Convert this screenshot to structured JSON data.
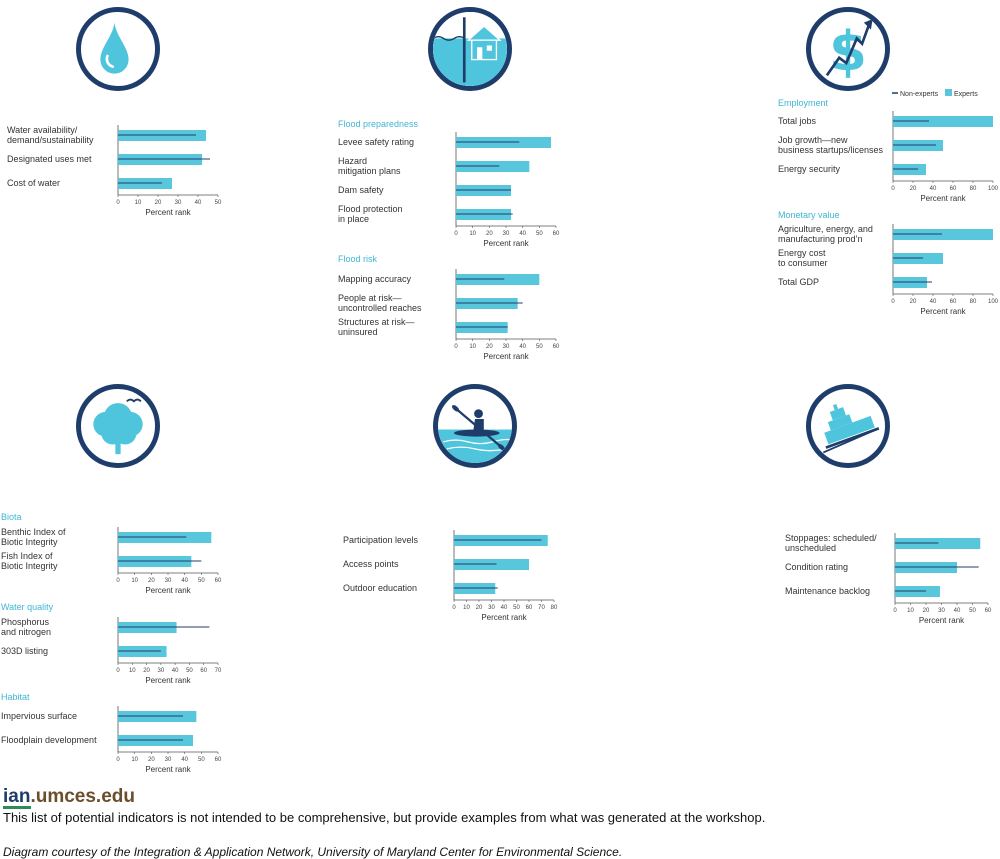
{
  "colors": {
    "experts": "#58c7dc",
    "non_experts": "#1f3d6b",
    "section": "#3fb6d3",
    "label": "#333333",
    "icon_ring": "#1f3d6b",
    "icon_fill": "#4ec5dc"
  },
  "icons": [
    {
      "name": "water-drop-icon"
    },
    {
      "name": "flooded-house-icon"
    },
    {
      "name": "dollar-growth-icon"
    },
    {
      "name": "tree-bird-icon"
    },
    {
      "name": "kayaker-icon"
    },
    {
      "name": "barge-icon"
    }
  ],
  "legend": {
    "non_experts": "Non-experts",
    "experts": "Experts"
  },
  "footer": {
    "logo_ian": "ian",
    "logo_rest": ".umces.edu",
    "note": "This list of potential indicators is not intended to be comprehensive, but provide examples from what was generated at the workshop.",
    "credit": "Diagram courtesy of the Integration & Application Network, University of Maryland Center for Environmental Science."
  },
  "chart_data": [
    {
      "id": "water",
      "type": "bar",
      "section": "",
      "xlabel": "Percent rank",
      "xlim": [
        0,
        50
      ],
      "ticks": [
        "0",
        "10",
        "20",
        "30",
        "40",
        "50"
      ],
      "categories": [
        "Water availability/\ndemand/sustainability",
        "Designated uses met",
        "Cost of water"
      ],
      "series": [
        {
          "name": "Experts",
          "values": [
            44,
            42,
            27
          ]
        },
        {
          "name": "Non-experts",
          "values": [
            39,
            46,
            22
          ]
        }
      ]
    },
    {
      "id": "flood-preparedness",
      "type": "bar",
      "section": "Flood preparedness",
      "xlabel": "Percent rank",
      "xlim": [
        0,
        60
      ],
      "ticks": [
        "0",
        "10",
        "20",
        "30",
        "40",
        "50",
        "60"
      ],
      "categories": [
        "Levee safety rating",
        "Hazard\nmitigation plans",
        "Dam safety",
        "Flood protection\nin place"
      ],
      "series": [
        {
          "name": "Experts",
          "values": [
            57,
            44,
            33,
            33
          ]
        },
        {
          "name": "Non-experts",
          "values": [
            38,
            26,
            33,
            34
          ]
        }
      ]
    },
    {
      "id": "flood-risk",
      "type": "bar",
      "section": "Flood risk",
      "xlabel": "Percent rank",
      "xlim": [
        0,
        60
      ],
      "ticks": [
        "0",
        "10",
        "20",
        "30",
        "40",
        "50",
        "60"
      ],
      "categories": [
        "Mapping accuracy",
        "People at risk—\nuncontrolled reaches",
        "Structures at risk—\nuninsured"
      ],
      "series": [
        {
          "name": "Experts",
          "values": [
            50,
            37,
            31
          ]
        },
        {
          "name": "Non-experts",
          "values": [
            29,
            40,
            31
          ]
        }
      ]
    },
    {
      "id": "employment",
      "type": "bar",
      "section": "Employment",
      "xlabel": "Percent rank",
      "xlim": [
        0,
        100
      ],
      "ticks": [
        "0",
        "20",
        "40",
        "60",
        "80",
        "100"
      ],
      "categories": [
        "Total jobs",
        "Job growth—new\nbusiness startups/licenses",
        "Energy security"
      ],
      "series": [
        {
          "name": "Experts",
          "values": [
            100,
            50,
            33
          ]
        },
        {
          "name": "Non-experts",
          "values": [
            36,
            43,
            25
          ]
        }
      ]
    },
    {
      "id": "monetary-value",
      "type": "bar",
      "section": "Monetary value",
      "xlabel": "Percent rank",
      "xlim": [
        0,
        100
      ],
      "ticks": [
        "0",
        "20",
        "40",
        "60",
        "80",
        "100"
      ],
      "categories": [
        "Agriculture, energy, and\nmanufacturing prod’n",
        "Energy cost\nto consumer",
        "Total GDP"
      ],
      "series": [
        {
          "name": "Experts",
          "values": [
            100,
            50,
            34
          ]
        },
        {
          "name": "Non-experts",
          "values": [
            49,
            30,
            39
          ]
        }
      ]
    },
    {
      "id": "biota",
      "type": "bar",
      "section": "Biota",
      "xlabel": "Percent rank",
      "xlim": [
        0,
        60
      ],
      "ticks": [
        "0",
        "10",
        "20",
        "30",
        "40",
        "50",
        "60"
      ],
      "categories": [
        "Benthic Index of\nBiotic Integrity",
        "Fish Index of\nBiotic Integrity"
      ],
      "series": [
        {
          "name": "Experts",
          "values": [
            56,
            44
          ]
        },
        {
          "name": "Non-experts",
          "values": [
            41,
            50
          ]
        }
      ]
    },
    {
      "id": "water-quality",
      "type": "bar",
      "section": "Water quality",
      "xlabel": "Percent rank",
      "xlim": [
        0,
        70
      ],
      "ticks": [
        "0",
        "10",
        "20",
        "30",
        "40",
        "50",
        "60",
        "70"
      ],
      "categories": [
        "Phosphorus\nand nitrogen",
        "303D listing"
      ],
      "series": [
        {
          "name": "Experts",
          "values": [
            41,
            34
          ]
        },
        {
          "name": "Non-experts",
          "values": [
            64,
            30
          ]
        }
      ]
    },
    {
      "id": "habitat",
      "type": "bar",
      "section": "Habitat",
      "xlabel": "Percent rank",
      "xlim": [
        0,
        60
      ],
      "ticks": [
        "0",
        "10",
        "20",
        "30",
        "40",
        "50",
        "60"
      ],
      "categories": [
        "Impervious surface",
        "Floodplain development"
      ],
      "series": [
        {
          "name": "Experts",
          "values": [
            47,
            45
          ]
        },
        {
          "name": "Non-experts",
          "values": [
            39,
            39
          ]
        }
      ]
    },
    {
      "id": "recreation",
      "type": "bar",
      "section": "",
      "xlabel": "Percent rank",
      "xlim": [
        0,
        80
      ],
      "ticks": [
        "0",
        "10",
        "20",
        "30",
        "40",
        "50",
        "60",
        "70",
        "80"
      ],
      "categories": [
        "Participation levels",
        "Access points",
        "Outdoor education"
      ],
      "series": [
        {
          "name": "Experts",
          "values": [
            75,
            60,
            33
          ]
        },
        {
          "name": "Non-experts",
          "values": [
            70,
            34,
            35
          ]
        }
      ]
    },
    {
      "id": "navigation",
      "type": "bar",
      "section": "",
      "xlabel": "Percent rank",
      "xlim": [
        0,
        60
      ],
      "ticks": [
        "0",
        "10",
        "20",
        "30",
        "40",
        "50",
        "60"
      ],
      "categories": [
        "Stoppages: scheduled/\nunscheduled",
        "Condition rating",
        "Maintenance backlog"
      ],
      "series": [
        {
          "name": "Experts",
          "values": [
            55,
            40,
            29
          ]
        },
        {
          "name": "Non-experts",
          "values": [
            28,
            54,
            20
          ]
        }
      ]
    }
  ]
}
